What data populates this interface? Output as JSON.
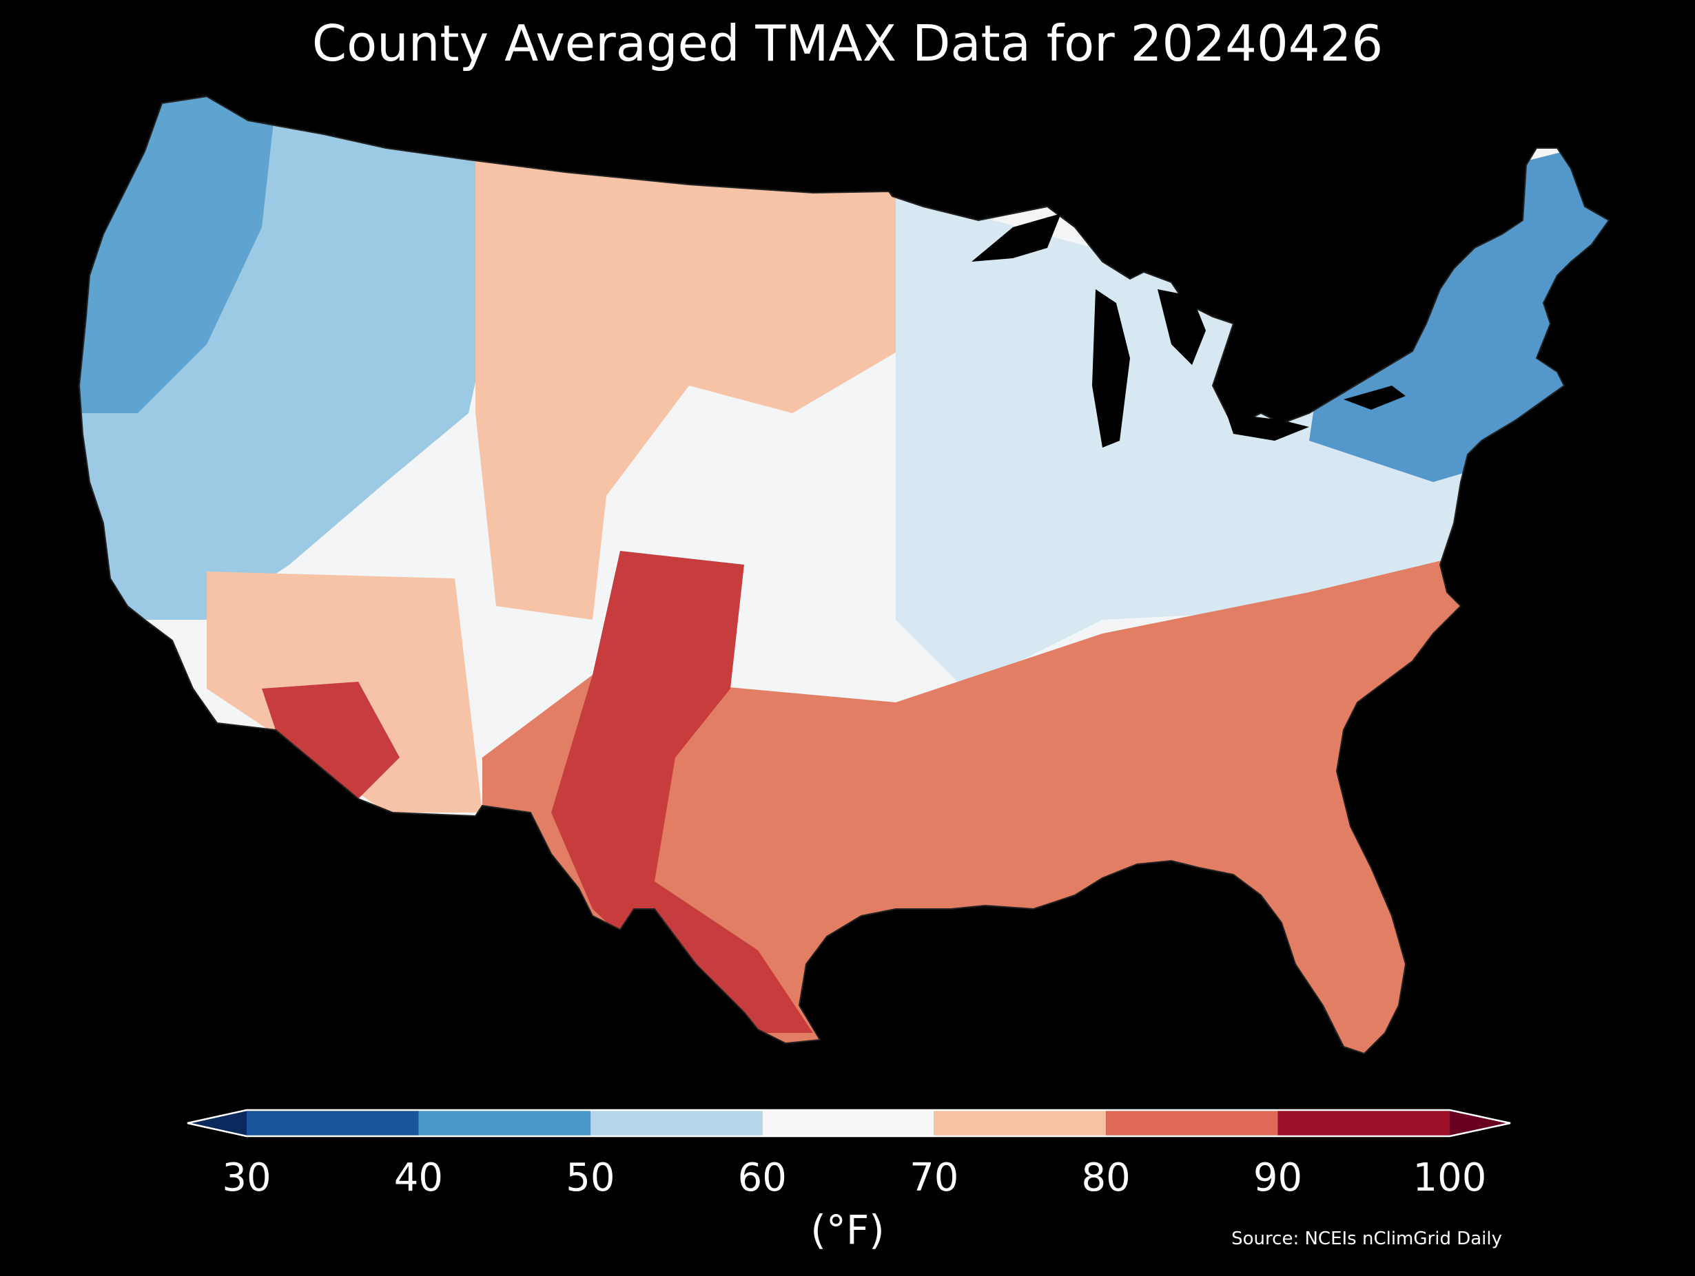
{
  "title": "County Averaged TMAX Data for 20240426",
  "colorbar": {
    "bins": [
      {
        "from": 30,
        "to": 40,
        "color": "#1a549a"
      },
      {
        "from": 40,
        "to": 50,
        "color": "#4a97c9"
      },
      {
        "from": 50,
        "to": 60,
        "color": "#b5d6e9"
      },
      {
        "from": 60,
        "to": 70,
        "color": "#f7f7f7"
      },
      {
        "from": 70,
        "to": 80,
        "color": "#f9c1a4"
      },
      {
        "from": 80,
        "to": 90,
        "color": "#df6a57"
      },
      {
        "from": 90,
        "to": 100,
        "color": "#9d1029"
      }
    ],
    "under_color": "#0a2a5e",
    "over_color": "#67001f",
    "ticks": [
      "30",
      "40",
      "50",
      "60",
      "70",
      "80",
      "90",
      "100"
    ],
    "unit": "(°F)"
  },
  "source": "Source: NCEIs nClimGrid Daily",
  "region_colors": {
    "west": "#9cc9e3",
    "northwest": "#5fa3d0",
    "great_plains": "#f7c3a6",
    "central": "#f3f5f6",
    "midwest": "#d8e8f2",
    "southeast": "#e27e64",
    "texas": "#c73d3e",
    "new_england": "#5497cb"
  }
}
